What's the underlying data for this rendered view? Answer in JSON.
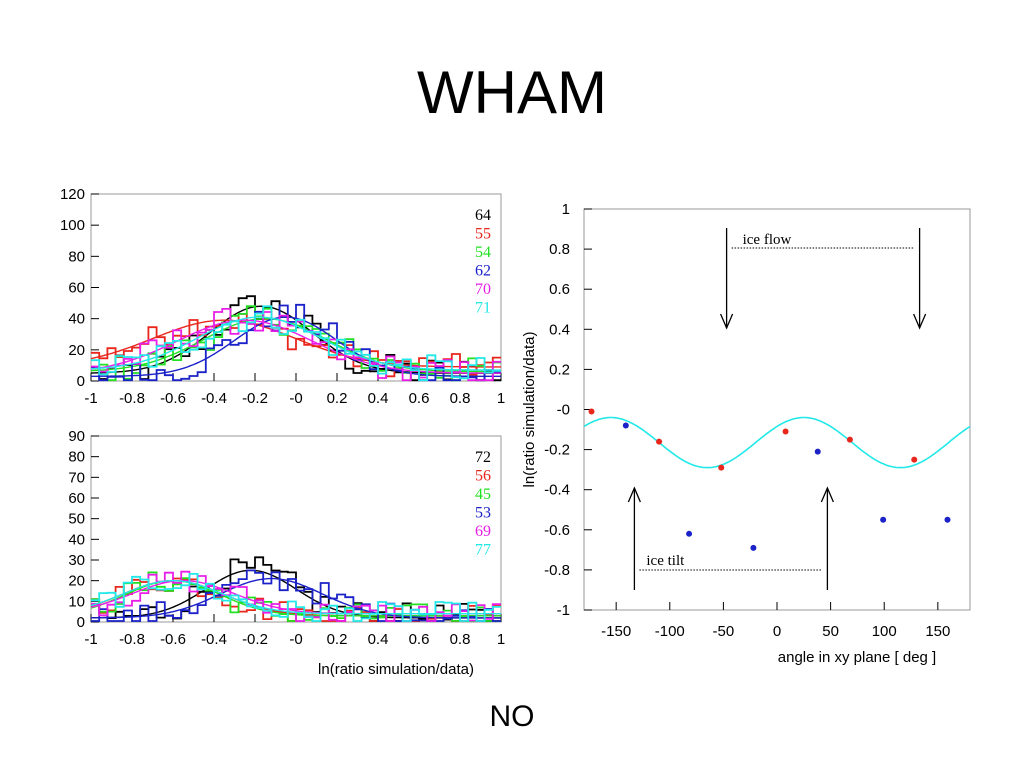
{
  "slide": {
    "title": "WHAM",
    "footer": "NO"
  },
  "colors": {
    "black": "#000000",
    "red": "#e8261c",
    "green": "#22e022",
    "blue": "#1a22c8",
    "magenta": "#e81ee8",
    "cyan": "#22e8e8"
  },
  "chart_data": [
    {
      "type": "line",
      "subtype": "histogram-with-gaussian-fits",
      "xlim": [
        -1,
        1
      ],
      "ylim": [
        0,
        120
      ],
      "xticks": [
        "-1",
        "-0.8",
        "-0.6",
        "-0.4",
        "-0.2",
        "-0",
        "0.2",
        "0.4",
        "0.6",
        "0.8",
        "1"
      ],
      "yticks": [
        "0",
        "20",
        "40",
        "60",
        "80",
        "100",
        "120"
      ],
      "xlabel": "",
      "ylabel": "",
      "legend_position": "top-right",
      "series": [
        {
          "name": "64",
          "color": "#000000",
          "mean": -0.17,
          "sigma": 0.25,
          "amp": 43,
          "base": 5
        },
        {
          "name": "55",
          "color": "#e8261c",
          "mean": -0.35,
          "sigma": 0.35,
          "amp": 30,
          "base": 9
        },
        {
          "name": "54",
          "color": "#22e022",
          "mean": -0.15,
          "sigma": 0.3,
          "amp": 34,
          "base": 6
        },
        {
          "name": "62",
          "color": "#1a22c8",
          "mean": -0.05,
          "sigma": 0.25,
          "amp": 38,
          "base": 3
        },
        {
          "name": "70",
          "color": "#e81ee8",
          "mean": -0.25,
          "sigma": 0.33,
          "amp": 34,
          "base": 5
        },
        {
          "name": "71",
          "color": "#22e8e8",
          "mean": -0.18,
          "sigma": 0.3,
          "amp": 34,
          "base": 7
        }
      ]
    },
    {
      "type": "line",
      "subtype": "histogram-with-gaussian-fits",
      "xlim": [
        -1,
        1
      ],
      "ylim": [
        0,
        90
      ],
      "xticks": [
        "-1",
        "-0.8",
        "-0.6",
        "-0.4",
        "-0.2",
        "-0",
        "0.2",
        "0.4",
        "0.6",
        "0.8",
        "1"
      ],
      "yticks": [
        "0",
        "10",
        "20",
        "30",
        "40",
        "50",
        "60",
        "70",
        "80",
        "90"
      ],
      "xlabel": "ln(ratio simulation/data)",
      "ylabel": "",
      "legend_position": "top-right",
      "series": [
        {
          "name": "72",
          "color": "#000000",
          "mean": -0.22,
          "sigma": 0.22,
          "amp": 23,
          "base": 2
        },
        {
          "name": "56",
          "color": "#e8261c",
          "mean": -0.6,
          "sigma": 0.25,
          "amp": 17,
          "base": 3
        },
        {
          "name": "45",
          "color": "#22e022",
          "mean": -0.6,
          "sigma": 0.23,
          "amp": 17,
          "base": 3
        },
        {
          "name": "53",
          "color": "#1a22c8",
          "mean": -0.12,
          "sigma": 0.25,
          "amp": 19,
          "base": 2
        },
        {
          "name": "69",
          "color": "#e81ee8",
          "mean": -0.55,
          "sigma": 0.25,
          "amp": 16,
          "base": 4
        },
        {
          "name": "77",
          "color": "#22e8e8",
          "mean": -0.6,
          "sigma": 0.24,
          "amp": 16,
          "base": 4
        }
      ]
    },
    {
      "type": "scatter",
      "xlim": [
        -180,
        180
      ],
      "ylim": [
        -1,
        1
      ],
      "xticks": [
        "-150",
        "-100",
        "-50",
        "0",
        "50",
        "100",
        "150"
      ],
      "yticks": [
        "-1",
        "-0.8",
        "-0.6",
        "-0.4",
        "-0.2",
        "-0",
        "0.2",
        "0.4",
        "0.6",
        "0.8",
        "1"
      ],
      "xlabel": "angle in xy plane [ deg ]",
      "ylabel": "ln(ratio simulation/data)",
      "series": [
        {
          "color": "#e8261c",
          "points": [
            [
              -173,
              -0.01
            ],
            [
              -52,
              -0.29
            ],
            [
              8,
              -0.11
            ],
            [
              128,
              -0.25
            ],
            [
              -110,
              -0.16
            ],
            [
              68,
              -0.15
            ]
          ]
        },
        {
          "color": "#1a22c8",
          "points": [
            [
              -141,
              -0.08
            ],
            [
              -82,
              -0.62
            ],
            [
              -22,
              -0.69
            ],
            [
              38,
              -0.21
            ],
            [
              99,
              -0.55
            ],
            [
              159,
              -0.55
            ]
          ]
        }
      ],
      "fit": {
        "color": "#22e8e8",
        "form": "a + b*cos(2*(x - phi))",
        "a": -0.165,
        "b": 0.125,
        "phi_deg": 25
      },
      "annotations": {
        "ice_flow": "ice flow",
        "ice_tilt": "ice tilt",
        "flow_arrows_x": [
          -47,
          133
        ],
        "tilt_arrows_x": [
          -133,
          47
        ]
      }
    }
  ]
}
